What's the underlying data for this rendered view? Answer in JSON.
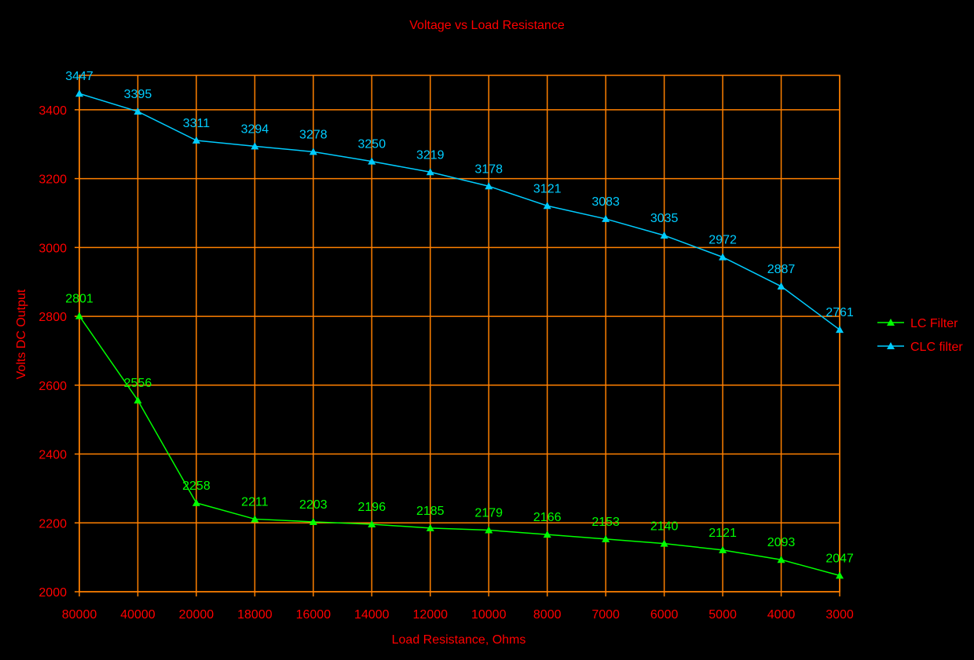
{
  "chart_data": {
    "type": "line",
    "title": "Voltage vs Load Resistance",
    "xlabel": "Load Resistance, Ohms",
    "ylabel": "Volts DC Output",
    "categories": [
      "80000",
      "40000",
      "20000",
      "18000",
      "16000",
      "14000",
      "12000",
      "10000",
      "8000",
      "7000",
      "6000",
      "5000",
      "4000",
      "3000"
    ],
    "ylim": [
      2000,
      3500
    ],
    "yticks": [
      2000,
      2200,
      2400,
      2600,
      2800,
      3000,
      3200,
      3400
    ],
    "grid": true,
    "legend_position": "right",
    "series": [
      {
        "name": "LC Filter",
        "color": "#00FF00",
        "marker": "triangle",
        "values": [
          2801,
          2556,
          2258,
          2211,
          2203,
          2196,
          2185,
          2179,
          2166,
          2153,
          2140,
          2121,
          2093,
          2047
        ]
      },
      {
        "name": "CLC filter",
        "color": "#00CCFF",
        "marker": "triangle",
        "values": [
          3447,
          3395,
          3311,
          3294,
          3278,
          3250,
          3219,
          3178,
          3121,
          3083,
          3035,
          2972,
          2887,
          2761
        ]
      }
    ],
    "colors": {
      "background": "#000000",
      "grid": "#FF8000",
      "text": "#FF0000"
    }
  }
}
